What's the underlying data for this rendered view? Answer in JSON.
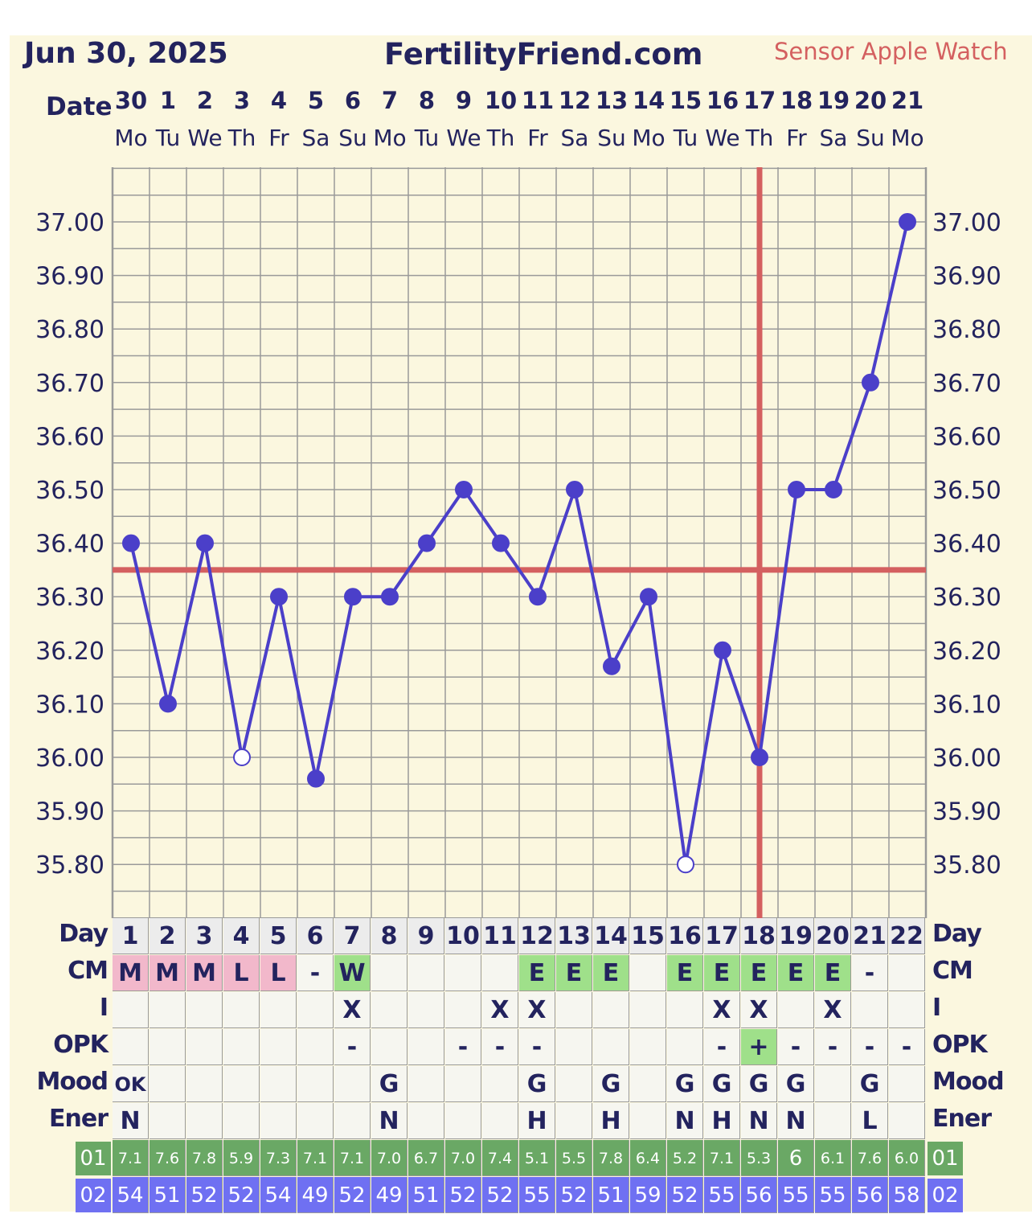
{
  "header": {
    "date": "Jun 30, 2025",
    "site": "FertilityFriend.com",
    "sensor": "Sensor Apple Watch",
    "date_label": "Date"
  },
  "colors": {
    "line": "#4b3fc9",
    "coverline": "#d46060",
    "background": "#fbf7df",
    "pink": "#f2b8cb",
    "green": "#9fe08a",
    "row01": "#6aa865",
    "row02": "#6f70f2"
  },
  "chart_data": {
    "type": "line",
    "x_dates": [
      "30",
      "1",
      "2",
      "3",
      "4",
      "5",
      "6",
      "7",
      "8",
      "9",
      "10",
      "11",
      "12",
      "13",
      "14",
      "15",
      "16",
      "17",
      "18",
      "19",
      "20",
      "21"
    ],
    "x_weekdays": [
      "Mo",
      "Tu",
      "We",
      "Th",
      "Fr",
      "Sa",
      "Su",
      "Mo",
      "Tu",
      "We",
      "Th",
      "Fr",
      "Sa",
      "Su",
      "Mo",
      "Tu",
      "We",
      "Th",
      "Fr",
      "Sa",
      "Su",
      "Mo"
    ],
    "series": [
      {
        "values": [
          36.4,
          36.1,
          36.4,
          36.0,
          36.3,
          35.96,
          36.3,
          36.3,
          36.4,
          36.5,
          36.4,
          36.3,
          36.5,
          36.17,
          36.3,
          35.8,
          36.2,
          36.0,
          36.5,
          36.5,
          36.7,
          37.0
        ],
        "open_points": [
          3,
          15
        ]
      }
    ],
    "y_ticks": [
      "37.00",
      "36.90",
      "36.80",
      "36.70",
      "36.60",
      "36.50",
      "36.40",
      "36.30",
      "36.20",
      "36.10",
      "36.00",
      "35.90",
      "35.80"
    ],
    "ylim": [
      35.7,
      37.1
    ],
    "coverline": 36.35,
    "ovulation_day_index": 17,
    "grid": true
  },
  "table": {
    "labels": {
      "day": "Day",
      "cm": "CM",
      "i": "I",
      "opk": "OPK",
      "mood": "Mood",
      "ener": "Ener",
      "r01": "01",
      "r02": "02"
    },
    "day": [
      "1",
      "2",
      "3",
      "4",
      "5",
      "6",
      "7",
      "8",
      "9",
      "10",
      "11",
      "12",
      "13",
      "14",
      "15",
      "16",
      "17",
      "18",
      "19",
      "20",
      "21",
      "22"
    ],
    "cm": [
      "M",
      "M",
      "M",
      "L",
      "L",
      "-",
      "W",
      "",
      "",
      "",
      "",
      "E",
      "E",
      "E",
      "",
      "E",
      "E",
      "E",
      "E",
      "E",
      "-",
      ""
    ],
    "cm_color": [
      "pink",
      "pink",
      "pink",
      "pink",
      "pink",
      "",
      "green",
      "",
      "",
      "",
      "",
      "green",
      "green",
      "green",
      "",
      "green",
      "green",
      "green",
      "green",
      "green",
      "",
      ""
    ],
    "i": [
      "",
      "",
      "",
      "",
      "",
      "",
      "X",
      "",
      "",
      "",
      "X",
      "X",
      "",
      "",
      "",
      "",
      "X",
      "X",
      "",
      "X",
      "",
      ""
    ],
    "opk": [
      "",
      "",
      "",
      "",
      "",
      "",
      "-",
      "",
      "",
      "-",
      "-",
      "-",
      "",
      "",
      "",
      "",
      "-",
      "+",
      "-",
      "-",
      "-",
      "-"
    ],
    "opk_color": [
      "",
      "",
      "",
      "",
      "",
      "",
      "",
      "",
      "",
      "",
      "",
      "",
      "",
      "",
      "",
      "",
      "",
      "green",
      "",
      "",
      "",
      ""
    ],
    "mood": [
      "OK",
      "",
      "",
      "",
      "",
      "",
      "",
      "G",
      "",
      "",
      "",
      "G",
      "",
      "G",
      "",
      "G",
      "G",
      "G",
      "G",
      "",
      "G",
      ""
    ],
    "ener": [
      "N",
      "",
      "",
      "",
      "",
      "",
      "",
      "N",
      "",
      "",
      "",
      "H",
      "",
      "H",
      "",
      "N",
      "H",
      "N",
      "N",
      "",
      "L",
      ""
    ],
    "r01": [
      "7.1",
      "7.6",
      "7.8",
      "5.9",
      "7.3",
      "7.1",
      "7.1",
      "7.0",
      "6.7",
      "7.0",
      "7.4",
      "5.1",
      "5.5",
      "7.8",
      "6.4",
      "5.2",
      "7.1",
      "5.3",
      "6",
      "6.1",
      "7.6",
      "6.0"
    ],
    "r02": [
      "54",
      "51",
      "52",
      "52",
      "54",
      "49",
      "52",
      "49",
      "51",
      "52",
      "52",
      "55",
      "52",
      "51",
      "59",
      "52",
      "55",
      "56",
      "55",
      "55",
      "56",
      "58"
    ]
  }
}
